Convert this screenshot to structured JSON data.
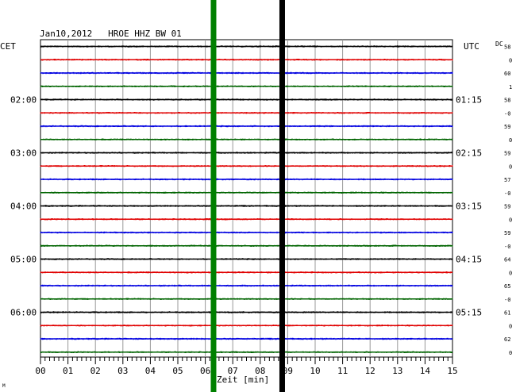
{
  "chart_data": {
    "type": "line",
    "title": "Jan10,2012   HROE HHZ BW 01",
    "left_axis_label": "CET",
    "right_axis_label": "UTC",
    "dc_header": "DC",
    "xlabel": "Zeit [min]",
    "xlim": [
      0,
      15
    ],
    "x_ticks": [
      "00",
      "01",
      "02",
      "03",
      "04",
      "05",
      "06",
      "07",
      "08",
      "09",
      "10",
      "11",
      "12",
      "13",
      "14",
      "15"
    ],
    "trace_colors": [
      "#000000",
      "#e00000",
      "#0000e0",
      "#006400"
    ],
    "left_hour_labels": [
      {
        "trace": 4,
        "label": "02:00"
      },
      {
        "trace": 8,
        "label": "03:00"
      },
      {
        "trace": 12,
        "label": "04:00"
      },
      {
        "trace": 16,
        "label": "05:00"
      },
      {
        "trace": 20,
        "label": "06:00"
      }
    ],
    "right_hour_labels": [
      {
        "trace": 4,
        "label": "01:15"
      },
      {
        "trace": 8,
        "label": "02:15"
      },
      {
        "trace": 12,
        "label": "03:15"
      },
      {
        "trace": 16,
        "label": "04:15"
      },
      {
        "trace": 20,
        "label": "05:15"
      }
    ],
    "dc_values": [
      "58",
      "0",
      "60",
      "1",
      "58",
      "-0",
      "59",
      "0",
      "59",
      "0",
      "57",
      "-0",
      "59",
      "0",
      "59",
      "-0",
      "64",
      "0",
      "65",
      "-0",
      "61",
      "0",
      "62",
      "0"
    ],
    "trace_count": 24,
    "vertical_markers": [
      {
        "x": 6.3,
        "color": "#008000"
      },
      {
        "x": 8.8,
        "color": "#000000"
      }
    ],
    "events": [
      {
        "trace": 15,
        "x": 6.3,
        "amplitude": 3.5
      },
      {
        "trace": 20,
        "x": 8.8,
        "amplitude": 4
      }
    ],
    "footer_mark": "M"
  }
}
